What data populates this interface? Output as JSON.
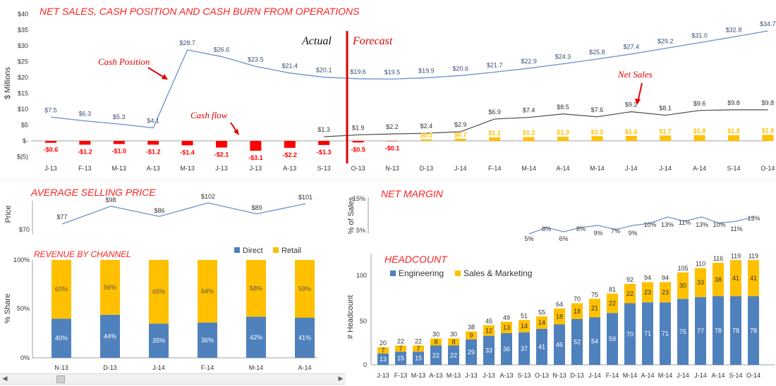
{
  "charts": {
    "main": {
      "title": "NET SALES, CASH POSITION AND CASH BURN FROM OPERATIONS",
      "ylabel": "$ Millions",
      "yticks": [
        "$40",
        "$35",
        "$30",
        "$25",
        "$20",
        "$15",
        "$10",
        "$5",
        "$-",
        "$(5)"
      ],
      "divider_left": "Actual",
      "divider_right": "Forecast",
      "annotations": {
        "cash_position": "Cash Position",
        "cash_flow": "Cash flow",
        "net_sales": "Net Sales"
      },
      "months": [
        "J-13",
        "F-13",
        "M-13",
        "A-13",
        "M-13",
        "J-13",
        "J-13",
        "A-13",
        "S-13",
        "O-13",
        "N-13",
        "D-13",
        "J-14",
        "F-14",
        "M-14",
        "A-14",
        "M-14",
        "J-14",
        "J-14",
        "A-14",
        "S-14",
        "O-14"
      ]
    },
    "asp": {
      "title": "AVERAGE SELLING PRICE",
      "ylabel": "Price",
      "yticks": [
        "$70"
      ]
    },
    "revenue": {
      "title": "REVENUE BY CHANNEL",
      "ylabel": "% Share",
      "yticks": [
        "100%",
        "50%",
        "0%"
      ]
    },
    "margin": {
      "title": "NET MARGIN",
      "ylabel": "% of Sales",
      "yticks": [
        "15%",
        "5%"
      ]
    },
    "headcount": {
      "title": "HEADCOUNT",
      "ylabel": "# Headcount",
      "yticks": [
        "100",
        "50",
        "0"
      ]
    }
  },
  "chart_data": [
    {
      "type": "line",
      "id": "main",
      "title": "NET SALES, CASH POSITION AND CASH BURN FROM OPERATIONS",
      "ylabel": "$ Millions",
      "ylim": [
        -5,
        40
      ],
      "categories": [
        "J-13",
        "F-13",
        "M-13",
        "A-13",
        "M-13",
        "J-13",
        "J-13",
        "A-13",
        "S-13",
        "O-13",
        "N-13",
        "D-13",
        "J-14",
        "F-14",
        "M-14",
        "A-14",
        "M-14",
        "J-14",
        "J-14",
        "A-14",
        "S-14",
        "O-14"
      ],
      "series": [
        {
          "name": "Cash Position",
          "color": "#6b8fce",
          "values": [
            7.5,
            6.3,
            5.3,
            4.1,
            28.7,
            26.6,
            23.5,
            21.4,
            20.1,
            19.6,
            19.5,
            19.9,
            20.6,
            21.7,
            22.9,
            24.3,
            25.8,
            27.4,
            29.2,
            31.0,
            32.8,
            34.7
          ],
          "labels": [
            "$7.5",
            "$6.3",
            "$5.3",
            "$4.1",
            "$28.7",
            "$26.6",
            "$23.5",
            "$21.4",
            "$20.1",
            "$19.6",
            "$19.5",
            "$19.9",
            "$20.6",
            "$21.7",
            "$22.9",
            "$24.3",
            "$25.8",
            "$27.4",
            "$29.2",
            "$31.0",
            "$32.8",
            "$34.7"
          ]
        },
        {
          "name": "Net Sales",
          "color": "#4a4a3c",
          "values": [
            null,
            null,
            null,
            null,
            null,
            null,
            null,
            null,
            1.3,
            1.9,
            2.2,
            2.4,
            2.9,
            6.9,
            7.4,
            8.5,
            7.6,
            9.2,
            8.1,
            9.6,
            9.8,
            9.8
          ],
          "labels": [
            null,
            null,
            null,
            null,
            null,
            null,
            null,
            null,
            "$1.3",
            "$1.9",
            "$2.2",
            "$2.4",
            "$2.9",
            "$6.9",
            "$7.4",
            "$8.5",
            "$7.6",
            "$9.2",
            "$8.1",
            "$9.6",
            "$9.8",
            "$9.8"
          ]
        },
        {
          "name": "Cash flow",
          "type": "bar",
          "colors": {
            "negative": "#ff0000",
            "positive": "#ffc000"
          },
          "values": [
            -0.6,
            -1.2,
            -1.0,
            -1.2,
            -1.4,
            -2.1,
            -3.1,
            -2.2,
            -1.3,
            -0.5,
            -0.1,
            0.5,
            0.7,
            1.1,
            1.2,
            1.3,
            1.5,
            1.6,
            1.7,
            1.8,
            1.8,
            1.9
          ],
          "labels": [
            "-$0.6",
            "-$1.2",
            "-$1.0",
            "-$1.2",
            "-$1.4",
            "-$2.1",
            "-$3.1",
            "-$2.2",
            "-$1.3",
            "-$0.5",
            "-$0.1",
            "$0.5",
            "$0.7",
            "$1.1",
            "$1.2",
            "$1.3",
            "$1.5",
            "$1.6",
            "$1.7",
            "$1.8",
            "$1.8",
            "$1.9"
          ]
        }
      ]
    },
    {
      "type": "line",
      "id": "asp",
      "title": "AVERAGE SELLING PRICE",
      "ylabel": "Price",
      "ylim": [
        70,
        105
      ],
      "series": [
        {
          "name": "",
          "color": "#6b8fce",
          "values": [
            77,
            98,
            86,
            102,
            89,
            101
          ],
          "labels": [
            "$77",
            "$98",
            "$86",
            "$102",
            "$89",
            "$101"
          ]
        }
      ]
    },
    {
      "type": "bar",
      "id": "revenue",
      "title": "REVENUE BY CHANNEL",
      "ylabel": "% Share",
      "ylim": [
        0,
        100
      ],
      "categories": [
        "N-13",
        "D-13",
        "J-14",
        "F-14",
        "M-14",
        "A-14"
      ],
      "series": [
        {
          "name": "Direct",
          "color": "#4f81bd",
          "values": [
            40,
            44,
            35,
            36,
            42,
            41
          ],
          "labels": [
            "40%",
            "44%",
            "35%",
            "36%",
            "42%",
            "41%"
          ]
        },
        {
          "name": "Retail",
          "color": "#ffc000",
          "values": [
            60,
            56,
            65,
            64,
            58,
            59
          ],
          "labels": [
            "60%",
            "56%",
            "65%",
            "64%",
            "58%",
            "59%"
          ]
        }
      ]
    },
    {
      "type": "line",
      "id": "margin",
      "title": "NET MARGIN",
      "ylabel": "% of Sales",
      "ylim": [
        5,
        15
      ],
      "series": [
        {
          "name": "",
          "color": "#6b8fce",
          "values": [
            5,
            8,
            6,
            8,
            9,
            7,
            9,
            10,
            13,
            11,
            13,
            10,
            11,
            13
          ],
          "labels": [
            "5%",
            "8%",
            "6%",
            "8%",
            "9%",
            "7%",
            "9%",
            "10%",
            "13%",
            "11%",
            "13%",
            "10%",
            "11%",
            "13%"
          ]
        }
      ]
    },
    {
      "type": "bar",
      "id": "headcount",
      "title": "HEADCOUNT",
      "ylabel": "# Headcount",
      "ylim": [
        0,
        125
      ],
      "categories": [
        "J-13",
        "F-13",
        "M-13",
        "A-13",
        "M-13",
        "J-13",
        "J-13",
        "A-13",
        "S-13",
        "O-13",
        "N-13",
        "D-13",
        "J-14",
        "F-14",
        "M-14",
        "A-14",
        "M-14",
        "J-14",
        "J-14",
        "A-14",
        "S-14",
        "O-14"
      ],
      "totals": [
        20,
        22,
        22,
        30,
        30,
        38,
        45,
        49,
        51,
        55,
        64,
        70,
        75,
        81,
        92,
        94,
        94,
        105,
        110,
        116,
        119,
        119
      ],
      "series": [
        {
          "name": "Engineering",
          "color": "#4f81bd",
          "values": [
            13,
            15,
            15,
            22,
            22,
            29,
            33,
            36,
            37,
            41,
            46,
            52,
            54,
            59,
            70,
            71,
            71,
            75,
            77,
            78,
            78,
            78
          ]
        },
        {
          "name": "Sales & Marketing",
          "color": "#ffc000",
          "values": [
            7,
            7,
            7,
            8,
            8,
            9,
            12,
            13,
            14,
            14,
            18,
            18,
            21,
            22,
            22,
            23,
            23,
            30,
            33,
            38,
            41,
            41
          ]
        }
      ]
    }
  ]
}
